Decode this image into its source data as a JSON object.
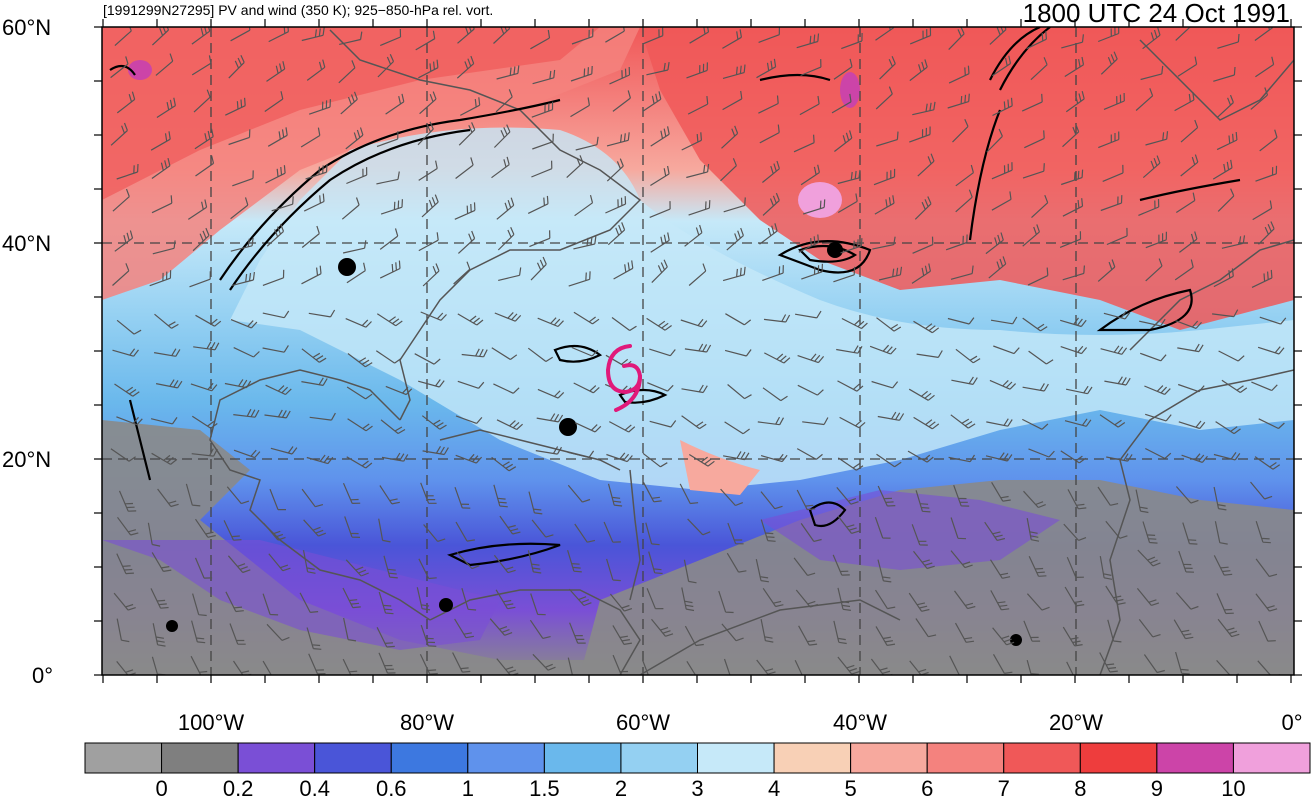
{
  "header": {
    "left_title": "[1991299N27295] PV and wind (350 K); 925−850-hPa rel. vort.",
    "right_title": "1800 UTC 24 Oct 1991"
  },
  "axes": {
    "lat_labels": [
      "60°N",
      "40°N",
      "20°N",
      "0°"
    ],
    "lon_labels": [
      "100°W",
      "80°W",
      "60°W",
      "40°W",
      "20°W",
      "0°"
    ]
  },
  "colorbar": {
    "labels": [
      "0",
      "0.2",
      "0.4",
      "0.6",
      "1",
      "1.5",
      "2",
      "3",
      "4",
      "5",
      "6",
      "7",
      "8",
      "9",
      "10"
    ],
    "colors": [
      "#a0a0a0",
      "#7f7f7f",
      "#7a4fd6",
      "#4a55d8",
      "#3d78e0",
      "#5f92ec",
      "#6ab8ec",
      "#94d0f2",
      "#c6e9f9",
      "#f8d0b6",
      "#f7a99e",
      "#f4827e",
      "#f05858",
      "#ee3d3d",
      "#cc44a8",
      "#f0a0dc"
    ]
  },
  "storm_symbol": {
    "name": "tropical-cyclone-symbol",
    "color": "#e0197a"
  }
}
